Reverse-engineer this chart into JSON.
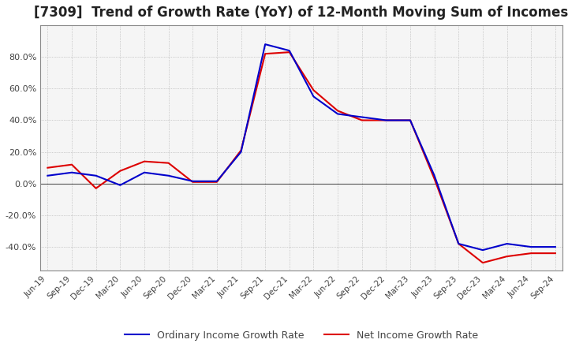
{
  "title": "[7309]  Trend of Growth Rate (YoY) of 12-Month Moving Sum of Incomes",
  "title_fontsize": 12,
  "ylim": [
    -55,
    100
  ],
  "yticks": [
    -40.0,
    -20.0,
    0.0,
    20.0,
    40.0,
    60.0,
    80.0
  ],
  "background_color": "#ffffff",
  "plot_bg_color": "#f5f5f5",
  "grid_color": "#aaaaaa",
  "line1_color": "#0000cc",
  "line2_color": "#dd0000",
  "line1_label": "Ordinary Income Growth Rate",
  "line2_label": "Net Income Growth Rate",
  "dates": [
    "Jun-19",
    "Sep-19",
    "Dec-19",
    "Mar-20",
    "Jun-20",
    "Sep-20",
    "Dec-20",
    "Mar-21",
    "Jun-21",
    "Sep-21",
    "Dec-21",
    "Mar-22",
    "Jun-22",
    "Sep-22",
    "Dec-22",
    "Mar-23",
    "Jun-23",
    "Sep-23",
    "Dec-23",
    "Mar-24",
    "Jun-24",
    "Sep-24"
  ],
  "ordinary_income": [
    5.0,
    7.0,
    5.0,
    -1.0,
    7.0,
    5.0,
    1.5,
    1.5,
    20.0,
    88.0,
    84.0,
    55.0,
    44.0,
    42.0,
    40.0,
    40.0,
    5.0,
    -38.0,
    -42.0,
    -38.0,
    -40.0,
    -40.0
  ],
  "net_income": [
    10.0,
    12.0,
    -3.0,
    8.0,
    14.0,
    13.0,
    1.0,
    1.0,
    21.0,
    82.0,
    83.0,
    59.0,
    46.0,
    40.0,
    40.0,
    40.0,
    3.0,
    -38.0,
    -50.0,
    -46.0,
    -44.0,
    -44.0
  ]
}
